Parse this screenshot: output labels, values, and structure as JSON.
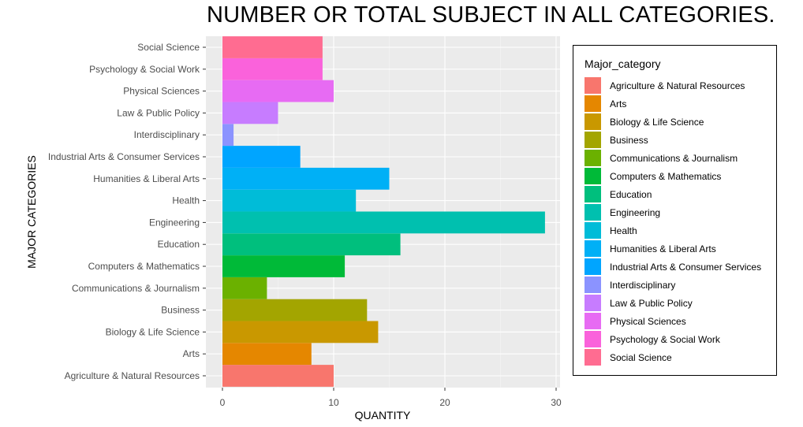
{
  "chart_data": {
    "type": "bar",
    "orientation": "horizontal",
    "title": "NUMBER OR TOTAL SUBJECT IN ALL CATEGORIES.",
    "xlabel": "QUANTITY",
    "ylabel": "MAJOR CATEGORIES",
    "xlim": [
      0,
      30
    ],
    "xticks": [
      0,
      10,
      20,
      30
    ],
    "grid": true,
    "legend_title": "Major_category",
    "legend_position": "right",
    "categories": [
      "Agriculture & Natural Resources",
      "Arts",
      "Biology & Life Science",
      "Business",
      "Communications & Journalism",
      "Computers & Mathematics",
      "Education",
      "Engineering",
      "Health",
      "Humanities & Liberal Arts",
      "Industrial Arts & Consumer Services",
      "Interdisciplinary",
      "Law & Public Policy",
      "Physical Sciences",
      "Psychology & Social Work",
      "Social Science"
    ],
    "values": [
      10,
      8,
      14,
      13,
      4,
      11,
      16,
      29,
      12,
      15,
      7,
      1,
      5,
      10,
      9,
      9
    ],
    "colors": [
      "#F8766D",
      "#E58700",
      "#C99800",
      "#A3A500",
      "#6BB100",
      "#00BA38",
      "#00BF7D",
      "#00C0AF",
      "#00BCD8",
      "#00B0F6",
      "#00A5FF",
      "#8B93FF",
      "#C77CFF",
      "#E76BF3",
      "#FA62DB",
      "#FF6C91"
    ]
  }
}
